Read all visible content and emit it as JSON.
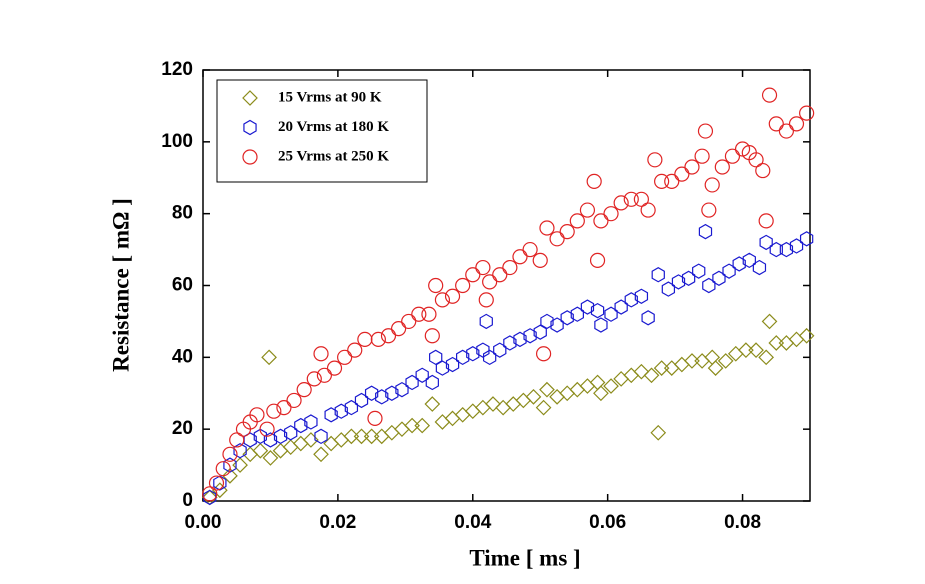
{
  "chart_data": {
    "type": "scatter",
    "xlabel": "Time [ ms ]",
    "ylabel": "Resistance [ mΩ ]",
    "xlim": [
      0,
      0.09
    ],
    "ylim": [
      0,
      120
    ],
    "xticks": [
      {
        "value": 0,
        "label": "0.00"
      },
      0.02,
      0.04,
      0.06,
      0.08
    ],
    "yticks": [
      0,
      20,
      40,
      60,
      80,
      100,
      120
    ],
    "legend": "upper left",
    "series": [
      {
        "name": "15 Vrms at 90 K",
        "color": "#8c8c1c",
        "marker": "diamond",
        "x": [
          0.001,
          0.0025,
          0.004,
          0.0055,
          0.007,
          0.0085,
          0.0098,
          0.01,
          0.0115,
          0.013,
          0.0145,
          0.016,
          0.0175,
          0.019,
          0.0205,
          0.022,
          0.0235,
          0.025,
          0.0265,
          0.028,
          0.0295,
          0.031,
          0.0325,
          0.034,
          0.0355,
          0.037,
          0.0385,
          0.04,
          0.0415,
          0.043,
          0.0445,
          0.046,
          0.0475,
          0.049,
          0.0505,
          0.051,
          0.0525,
          0.054,
          0.0555,
          0.057,
          0.0585,
          0.059,
          0.0605,
          0.062,
          0.0635,
          0.065,
          0.0665,
          0.0675,
          0.068,
          0.0695,
          0.071,
          0.0725,
          0.074,
          0.0755,
          0.076,
          0.0775,
          0.079,
          0.0805,
          0.082,
          0.0835,
          0.084,
          0.085,
          0.0865,
          0.088,
          0.0895
        ],
        "values": [
          1,
          3,
          7,
          10,
          13,
          14,
          40,
          12,
          14,
          15,
          16,
          17,
          13,
          16,
          17,
          18,
          18,
          18,
          18,
          19,
          20,
          21,
          21,
          27,
          22,
          23,
          24,
          25,
          26,
          27,
          26,
          27,
          28,
          29,
          26,
          31,
          29,
          30,
          31,
          32,
          33,
          30,
          32,
          34,
          35,
          36,
          35,
          19,
          37,
          37,
          38,
          39,
          39,
          40,
          37,
          39,
          41,
          42,
          42,
          40,
          50,
          44,
          44,
          45,
          46
        ]
      },
      {
        "name": "20 Vrms at 180 K",
        "color": "#1a1ad0",
        "marker": "hexagon",
        "x": [
          0.001,
          0.0025,
          0.004,
          0.0055,
          0.007,
          0.0085,
          0.01,
          0.0115,
          0.013,
          0.0145,
          0.016,
          0.0175,
          0.019,
          0.0205,
          0.022,
          0.0235,
          0.025,
          0.0265,
          0.028,
          0.0295,
          0.031,
          0.0325,
          0.034,
          0.0345,
          0.0355,
          0.037,
          0.0385,
          0.04,
          0.0415,
          0.042,
          0.0425,
          0.044,
          0.0455,
          0.047,
          0.0485,
          0.05,
          0.051,
          0.0525,
          0.054,
          0.0555,
          0.057,
          0.0585,
          0.059,
          0.0605,
          0.062,
          0.0635,
          0.065,
          0.066,
          0.0675,
          0.069,
          0.0705,
          0.072,
          0.0735,
          0.0745,
          0.075,
          0.0765,
          0.078,
          0.0795,
          0.081,
          0.0825,
          0.0835,
          0.085,
          0.0865,
          0.088,
          0.0895
        ],
        "values": [
          1,
          5,
          10,
          14,
          17,
          18,
          17,
          18,
          19,
          21,
          22,
          18,
          24,
          25,
          26,
          28,
          30,
          29,
          30,
          31,
          33,
          35,
          33,
          40,
          37,
          38,
          40,
          41,
          42,
          50,
          40,
          42,
          44,
          45,
          46,
          47,
          50,
          49,
          51,
          52,
          54,
          53,
          49,
          52,
          54,
          56,
          57,
          51,
          63,
          59,
          61,
          62,
          64,
          75,
          60,
          62,
          64,
          66,
          67,
          65,
          72,
          70,
          70,
          71,
          73
        ]
      },
      {
        "name": "25 Vrms at 250 K",
        "color": "#e02424",
        "marker": "circle",
        "x": [
          0.001,
          0.002,
          0.003,
          0.004,
          0.005,
          0.006,
          0.007,
          0.008,
          0.0095,
          0.0105,
          0.012,
          0.0135,
          0.015,
          0.0165,
          0.0175,
          0.018,
          0.0195,
          0.021,
          0.0225,
          0.024,
          0.0255,
          0.026,
          0.0275,
          0.029,
          0.0305,
          0.032,
          0.0335,
          0.034,
          0.0345,
          0.0355,
          0.037,
          0.0385,
          0.04,
          0.0415,
          0.042,
          0.0425,
          0.044,
          0.0455,
          0.047,
          0.0485,
          0.05,
          0.0505,
          0.051,
          0.0525,
          0.054,
          0.0555,
          0.057,
          0.058,
          0.0585,
          0.059,
          0.0605,
          0.062,
          0.0635,
          0.065,
          0.066,
          0.067,
          0.068,
          0.0695,
          0.071,
          0.0725,
          0.074,
          0.0745,
          0.075,
          0.0755,
          0.077,
          0.0785,
          0.08,
          0.081,
          0.082,
          0.083,
          0.0835,
          0.084,
          0.085,
          0.0865,
          0.088,
          0.0895
        ],
        "values": [
          2,
          5,
          9,
          13,
          17,
          20,
          22,
          24,
          20,
          25,
          26,
          28,
          31,
          34,
          41,
          35,
          37,
          40,
          42,
          45,
          23,
          45,
          46,
          48,
          50,
          52,
          52,
          46,
          60,
          56,
          57,
          60,
          63,
          65,
          56,
          61,
          63,
          65,
          68,
          70,
          67,
          41,
          76,
          73,
          75,
          78,
          81,
          89,
          67,
          78,
          80,
          83,
          84,
          84,
          81,
          95,
          89,
          89,
          91,
          93,
          96,
          103,
          81,
          88,
          93,
          96,
          98,
          97,
          95,
          92,
          78,
          113,
          105,
          103,
          105,
          108
        ]
      }
    ]
  }
}
